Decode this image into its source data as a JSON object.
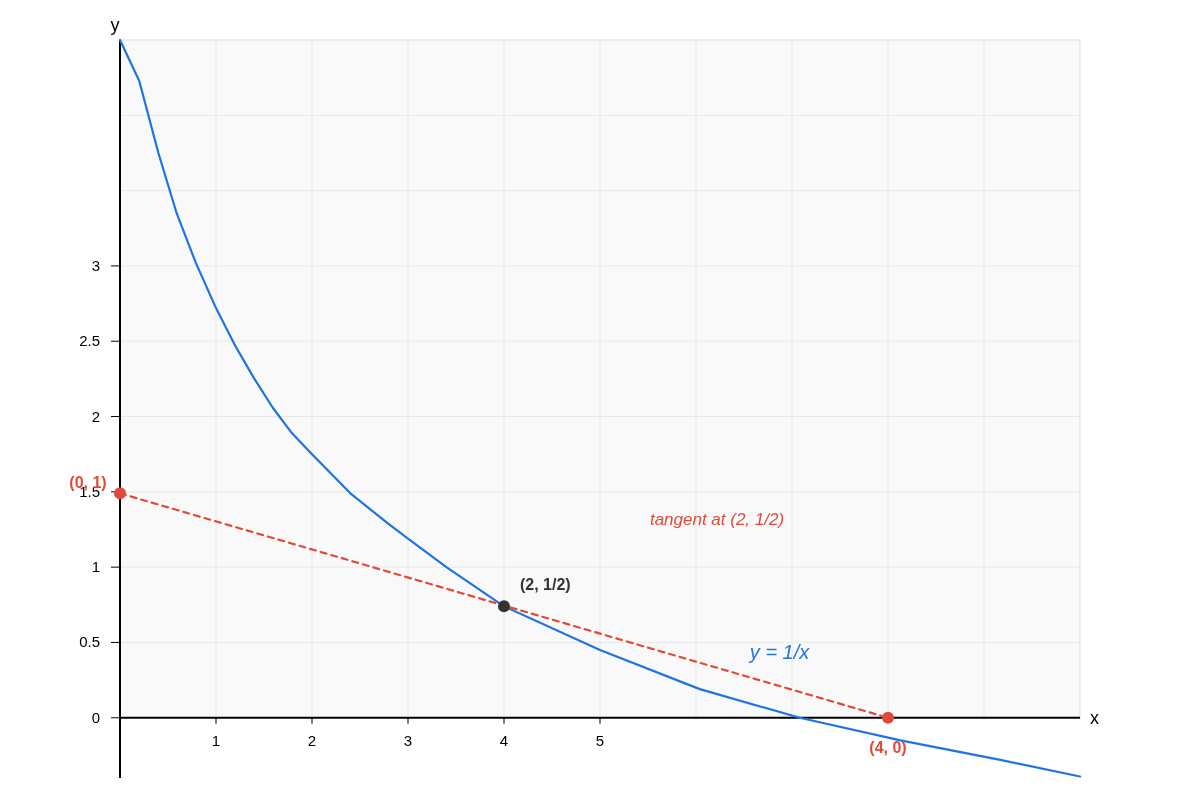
{
  "chart_data": {
    "type": "line",
    "xlabel": "x",
    "ylabel": "y",
    "xlim": [
      0,
      10
    ],
    "ylim": [
      -0.4,
      4.5
    ],
    "xticks": [
      1,
      2,
      3,
      4,
      5,
      {
        "value": 6,
        "label": null
      },
      {
        "value": 7,
        "label": null
      },
      {
        "value": 8,
        "label": null
      },
      {
        "value": 9,
        "label": null
      }
    ],
    "yticks": [
      0,
      0.5,
      1,
      1.5,
      2,
      2.5,
      3,
      {
        "value": 3.5,
        "label": null
      },
      {
        "value": 4,
        "label": null
      }
    ],
    "grid": true,
    "annotations": [
      "tangent at (2, 1/2)"
    ],
    "series": [
      {
        "name": "y = 1/x",
        "color": "#1f74dd",
        "line_style": "solid",
        "x": [
          0,
          0.2,
          0.4,
          0.59,
          0.79,
          1,
          1.2,
          1.4,
          1.59,
          1.79,
          2,
          2.4,
          2.79,
          3,
          3.4,
          4,
          5,
          6.04,
          7.08,
          8.13,
          9.17,
          10
        ],
        "values": [
          4.5,
          4.23,
          3.75,
          3.35,
          3.02,
          2.72,
          2.47,
          2.25,
          2.06,
          1.89,
          1.75,
          1.49,
          1.29,
          1.19,
          1,
          0.74,
          0.45,
          0.19,
          0,
          -0.15,
          -0.28,
          -0.39
        ]
      },
      {
        "type": "line",
        "color": "#e04a3a",
        "line_style": "dashed",
        "x": [
          0,
          8
        ],
        "values": [
          1.49,
          0
        ]
      },
      {
        "type": "scatter",
        "color": "#e04a3a",
        "marker": "circle",
        "x": [
          0,
          8
        ],
        "values": [
          1.49,
          0
        ],
        "value_labels": [
          "(0, 1)",
          "(4, 0)"
        ]
      },
      {
        "type": "scatter",
        "color": "#333333",
        "marker": "circle",
        "x": [
          4
        ],
        "values": [
          0.74
        ],
        "value_labels": [
          "(2, 1/2)"
        ]
      }
    ]
  }
}
